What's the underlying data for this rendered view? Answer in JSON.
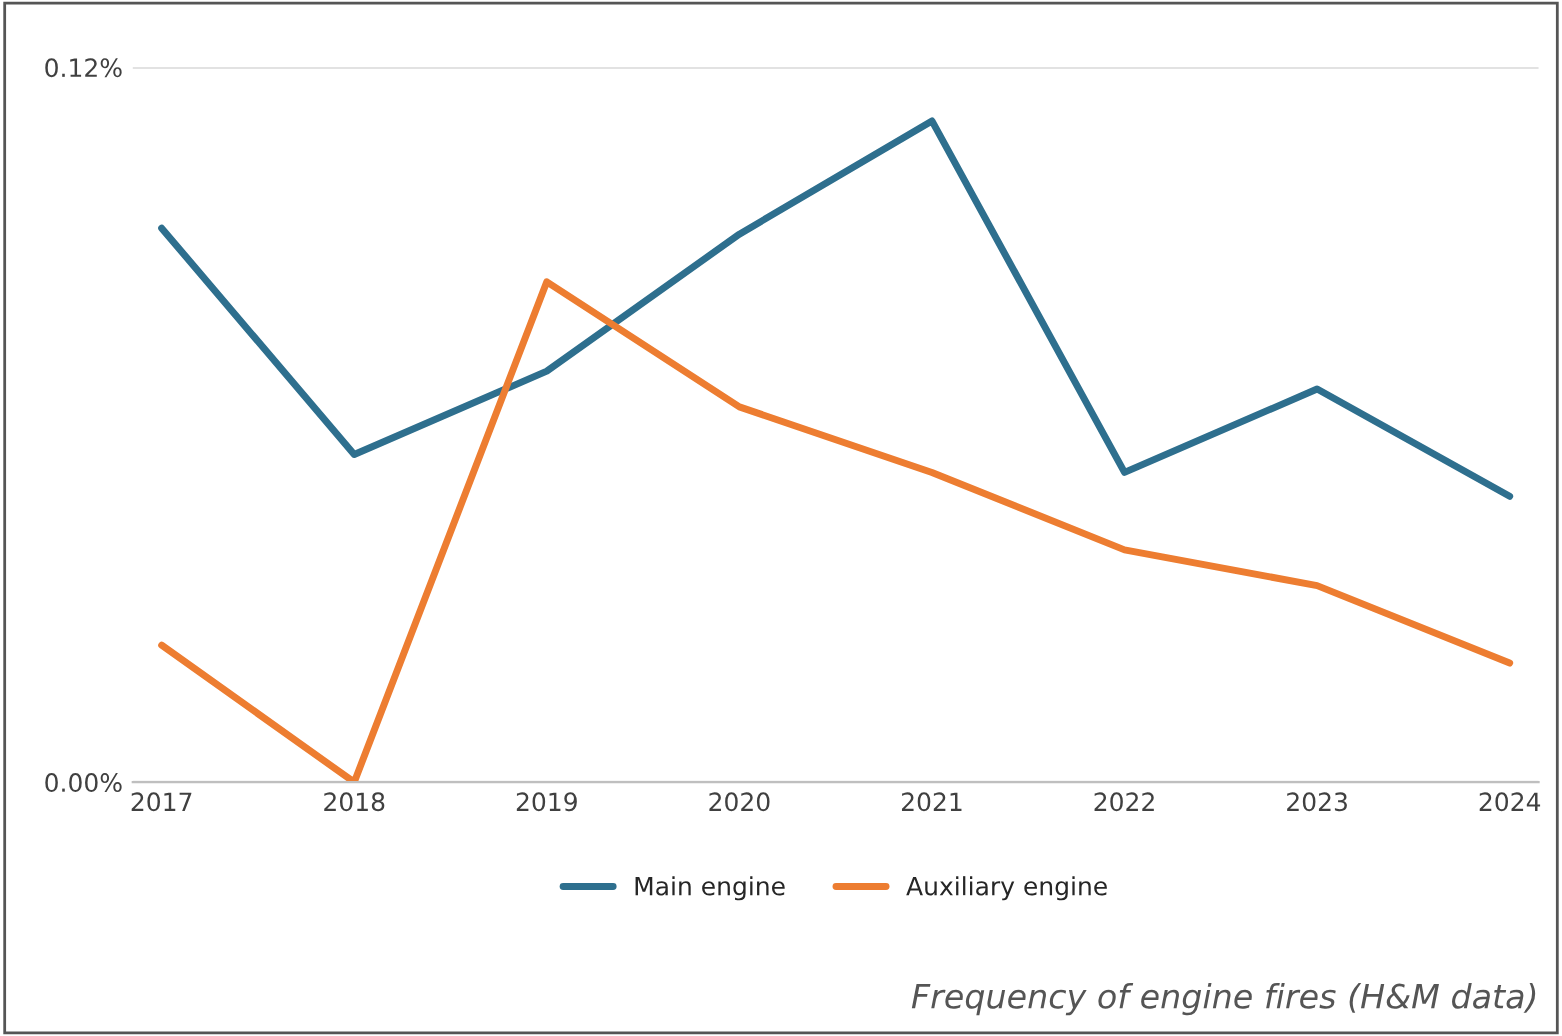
{
  "chart_data": {
    "type": "line",
    "categories": [
      "2017",
      "2018",
      "2019",
      "2020",
      "2021",
      "2022",
      "2023",
      "2024"
    ],
    "series": [
      {
        "name": "Main engine",
        "color": "#2e6f8e",
        "values": [
          0.093,
          0.055,
          0.069,
          0.092,
          0.111,
          0.052,
          0.066,
          0.048
        ]
      },
      {
        "name": "Auxiliary engine",
        "color": "#ed7d31",
        "values": [
          0.023,
          0,
          0.084,
          0.063,
          0.052,
          0.039,
          0.033,
          0.02
        ]
      }
    ],
    "ylim": [
      0,
      0.12
    ],
    "yticks": [
      {
        "value": 0,
        "label": "0.00%"
      },
      {
        "value": 0.12,
        "label": "0.12%"
      }
    ],
    "grid": "y",
    "legend": "bottom",
    "marker": "none",
    "line_style": "solid",
    "annotations": [
      "Frequency of engine fires (H&M data)"
    ]
  }
}
